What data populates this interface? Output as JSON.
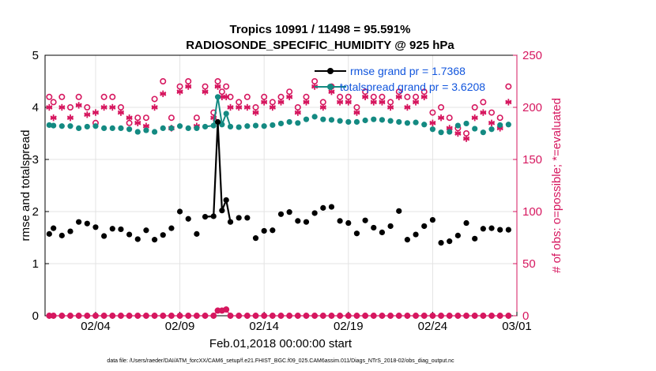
{
  "chart_data": {
    "type": "line",
    "title": "Tropics 10991 / 11498 = 95.591%",
    "subtitle": "RADIOSONDE_SPECIFIC_HUMIDITY @ 925 hPa",
    "xlabel": "Feb.01,2018 00:00:00 start",
    "ylabel_left": "rmse and totalspread",
    "ylabel_right": "# of obs: o=possible; *=evaluated",
    "footer": "data file: /Users/raeder/DAI/ATM_forcXX/CAM6_setup/f.e21.FHIST_BGC.f09_025.CAM6assim.011/Diags_NTrS_2018-02/obs_diag_output.nc",
    "xlim": [
      1,
      29
    ],
    "ylim_left": [
      0,
      5
    ],
    "ylim_right": [
      0,
      250
    ],
    "x_ticks": [
      {
        "value": 4,
        "label": "02/04"
      },
      {
        "value": 9,
        "label": "02/09"
      },
      {
        "value": 14,
        "label": "02/14"
      },
      {
        "value": 19,
        "label": "02/19"
      },
      {
        "value": 24,
        "label": "02/24"
      },
      {
        "value": 29,
        "label": "03/01"
      }
    ],
    "y_ticks_left": [
      0,
      1,
      2,
      3,
      4,
      5
    ],
    "y_ticks_right": [
      0,
      50,
      100,
      150,
      200,
      250
    ],
    "colors": {
      "rmse": "#000000",
      "spread": "#148a82",
      "obs": "#d6175f"
    },
    "legend": [
      {
        "name": "rmse grand pr = 1.7368",
        "color": "#000000",
        "text_color": "#1155dd"
      },
      {
        "name": "totalspread grand pr = 3.6208",
        "color": "#148a82",
        "text_color": "#1155dd"
      }
    ],
    "series": [
      {
        "name": "rmse",
        "axis": "left",
        "x": [
          1.25,
          1.5,
          2.0,
          2.5,
          3.0,
          3.5,
          4.0,
          4.5,
          5.0,
          5.5,
          6.0,
          6.5,
          7.0,
          7.5,
          8.0,
          8.5,
          9.0,
          9.5,
          10.0,
          10.5,
          11.0,
          11.25,
          11.5,
          11.75,
          12.0,
          12.5,
          13.0,
          13.5,
          14.0,
          14.5,
          15.0,
          15.5,
          16.0,
          16.5,
          17.0,
          17.5,
          18.0,
          18.5,
          19.0,
          19.5,
          20.0,
          20.5,
          21.0,
          21.5,
          22.0,
          22.5,
          23.0,
          23.5,
          24.0,
          24.5,
          25.0,
          25.5,
          26.0,
          26.5,
          27.0,
          27.5,
          28.0,
          28.5
        ],
        "values": [
          1.57,
          1.68,
          1.54,
          1.62,
          1.8,
          1.77,
          1.7,
          1.53,
          1.67,
          1.66,
          1.56,
          1.47,
          1.64,
          1.46,
          1.55,
          1.68,
          2.0,
          1.86,
          1.57,
          1.9,
          1.91,
          3.72,
          2.02,
          2.22,
          1.8,
          1.88,
          1.88,
          1.49,
          1.63,
          1.64,
          1.95,
          1.99,
          1.82,
          1.8,
          1.97,
          2.07,
          2.09,
          1.82,
          1.78,
          1.58,
          1.83,
          1.69,
          1.6,
          1.72,
          2.01,
          1.46,
          1.56,
          1.72,
          1.84,
          1.4,
          1.43,
          1.54,
          1.78,
          1.48,
          1.67,
          1.68,
          1.65,
          1.65
        ]
      },
      {
        "name": "totalspread",
        "axis": "left",
        "x": [
          1.25,
          1.5,
          2.0,
          2.5,
          3.0,
          3.5,
          4.0,
          4.5,
          5.0,
          5.5,
          6.0,
          6.5,
          7.0,
          7.5,
          8.0,
          8.5,
          9.0,
          9.5,
          10.0,
          10.5,
          11.0,
          11.25,
          11.5,
          11.75,
          12.0,
          12.5,
          13.0,
          13.5,
          14.0,
          14.5,
          15.0,
          15.5,
          16.0,
          16.5,
          17.0,
          17.5,
          18.0,
          18.5,
          19.0,
          19.5,
          20.0,
          20.5,
          21.0,
          21.5,
          22.0,
          22.5,
          23.0,
          23.5,
          24.0,
          24.5,
          25.0,
          25.5,
          26.0,
          26.5,
          27.0,
          27.5,
          28.0,
          28.5
        ],
        "values": [
          3.66,
          3.65,
          3.64,
          3.64,
          3.6,
          3.63,
          3.64,
          3.6,
          3.6,
          3.6,
          3.58,
          3.53,
          3.56,
          3.53,
          3.6,
          3.6,
          3.64,
          3.6,
          3.6,
          3.63,
          3.65,
          4.2,
          3.67,
          3.88,
          3.63,
          3.62,
          3.64,
          3.65,
          3.64,
          3.66,
          3.69,
          3.72,
          3.7,
          3.77,
          3.82,
          3.77,
          3.76,
          3.74,
          3.72,
          3.72,
          3.75,
          3.77,
          3.76,
          3.74,
          3.72,
          3.7,
          3.71,
          3.67,
          3.58,
          3.52,
          3.53,
          3.65,
          3.69,
          3.59,
          3.52,
          3.58,
          3.66,
          3.67
        ]
      },
      {
        "name": "obs_possible",
        "axis": "right",
        "x": [
          1.25,
          1.5,
          2.0,
          2.5,
          3.0,
          3.5,
          4.0,
          4.5,
          5.0,
          5.5,
          6.0,
          6.5,
          7.0,
          7.5,
          8.0,
          8.5,
          9.0,
          9.5,
          10.0,
          10.5,
          11.0,
          11.25,
          11.5,
          11.75,
          12.0,
          12.5,
          13.0,
          13.5,
          14.0,
          14.5,
          15.0,
          15.5,
          16.0,
          16.5,
          17.0,
          17.5,
          18.0,
          18.5,
          19.0,
          19.5,
          20.0,
          20.5,
          21.0,
          21.5,
          22.0,
          22.5,
          23.0,
          23.5,
          24.0,
          24.5,
          25.0,
          25.5,
          26.0,
          26.5,
          27.0,
          27.5,
          28.0,
          28.5
        ],
        "values": [
          210,
          205,
          210,
          200,
          210,
          200,
          185,
          210,
          210,
          200,
          185,
          190,
          190,
          208,
          225,
          190,
          220,
          225,
          190,
          220,
          195,
          225,
          215,
          220,
          210,
          205,
          210,
          200,
          210,
          205,
          210,
          215,
          200,
          210,
          225,
          205,
          220,
          210,
          210,
          200,
          215,
          210,
          210,
          205,
          215,
          210,
          210,
          215,
          195,
          200,
          190,
          180,
          175,
          200,
          205,
          195,
          190,
          220
        ]
      },
      {
        "name": "obs_evaluated",
        "axis": "right",
        "x": [
          1.25,
          1.5,
          2.0,
          2.5,
          3.0,
          3.5,
          4.0,
          4.5,
          5.0,
          5.5,
          6.0,
          6.5,
          7.0,
          7.5,
          8.0,
          8.5,
          9.0,
          9.5,
          10.0,
          10.5,
          11.0,
          11.25,
          11.5,
          11.75,
          12.0,
          12.5,
          13.0,
          13.5,
          14.0,
          14.5,
          15.0,
          15.5,
          16.0,
          16.5,
          17.0,
          17.5,
          18.0,
          18.5,
          19.0,
          19.5,
          20.0,
          20.5,
          21.0,
          21.5,
          22.0,
          22.5,
          23.0,
          23.5,
          24.0,
          24.5,
          25.0,
          25.5,
          26.0,
          26.5,
          27.0,
          27.5,
          28.0,
          28.5
        ],
        "values": [
          200,
          190,
          200,
          190,
          202,
          193,
          195,
          200,
          200,
          195,
          190,
          185,
          182,
          200,
          213,
          180,
          215,
          220,
          182,
          215,
          190,
          220,
          210,
          210,
          200,
          200,
          200,
          195,
          205,
          200,
          205,
          210,
          195,
          205,
          220,
          200,
          215,
          205,
          205,
          195,
          210,
          205,
          205,
          200,
          210,
          200,
          205,
          210,
          185,
          190,
          180,
          175,
          170,
          190,
          195,
          185,
          180,
          205
        ]
      },
      {
        "name": "obs_bottom",
        "axis": "right",
        "x": [
          1.25,
          1.5,
          2.0,
          2.5,
          3.0,
          3.5,
          4.0,
          4.5,
          5.0,
          5.5,
          6.0,
          6.5,
          7.0,
          7.5,
          8.0,
          8.5,
          9.0,
          9.5,
          10.0,
          10.5,
          11.0,
          11.25,
          11.5,
          11.75,
          12.0,
          12.5,
          13.0,
          13.5,
          14.0,
          14.5,
          15.0,
          15.5,
          16.0,
          16.5,
          17.0,
          17.5,
          18.0,
          18.5,
          19.0,
          19.5,
          20.0,
          20.5,
          21.0,
          21.5,
          22.0,
          22.5,
          23.0,
          23.5,
          24.0,
          24.5,
          25.0,
          25.5,
          26.0,
          26.5,
          27.0,
          27.5,
          28.0,
          28.5
        ],
        "values": [
          0,
          0,
          0,
          0,
          0,
          0,
          0,
          0,
          0,
          0,
          0,
          0,
          0,
          0,
          0,
          0,
          0,
          0,
          0,
          0,
          0,
          5,
          5,
          6,
          0,
          0,
          0,
          0,
          0,
          0,
          0,
          0,
          0,
          0,
          0,
          0,
          0,
          0,
          0,
          0,
          0,
          0,
          0,
          0,
          0,
          0,
          0,
          0,
          0,
          0,
          0,
          0,
          0,
          0,
          0,
          0,
          0,
          0
        ]
      }
    ]
  }
}
